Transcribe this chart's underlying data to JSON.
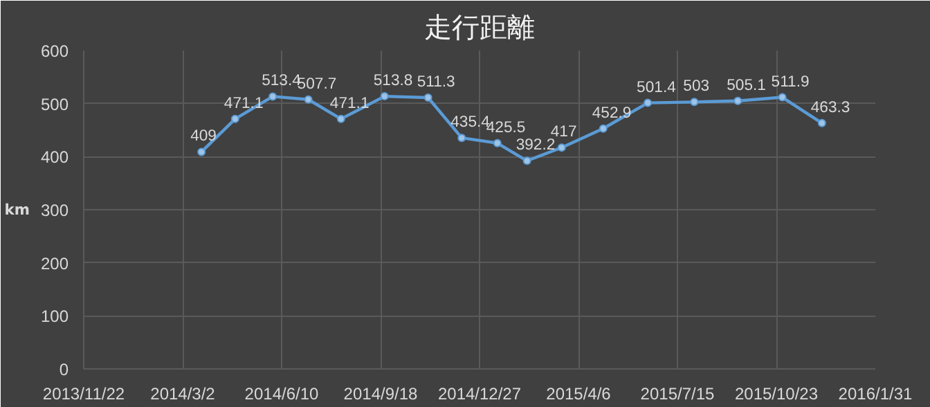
{
  "chart_data": {
    "type": "line",
    "title": "走行距離",
    "ylabel": "km",
    "x": [
      "2014-03-21",
      "2014-04-24",
      "2014-06-01",
      "2014-07-07",
      "2014-08-09",
      "2014-09-22",
      "2014-11-05",
      "2014-12-09",
      "2015-01-14",
      "2015-02-13",
      "2015-03-20",
      "2015-05-01",
      "2015-06-15",
      "2015-08-01",
      "2015-09-14",
      "2015-10-29",
      "2015-12-08"
    ],
    "series": [
      {
        "color": "#5b9bd5",
        "values": [
          409,
          471.1,
          513.4,
          507.7,
          471.1,
          513.8,
          511.3,
          435.4,
          425.5,
          392.2,
          417,
          452.9,
          501.4,
          503,
          505.1,
          511.9,
          463.3
        ]
      }
    ],
    "xlim": [
      "2013-11-22",
      "2016-01-31"
    ],
    "xticks": [
      {
        "value": "2013-11-22",
        "label": "2013/11/22"
      },
      {
        "value": "2014-03-02",
        "label": "2014/3/2"
      },
      {
        "value": "2014-06-10",
        "label": "2014/6/10"
      },
      {
        "value": "2014-09-18",
        "label": "2014/9/18"
      },
      {
        "value": "2014-12-27",
        "label": "2014/12/27"
      },
      {
        "value": "2015-04-06",
        "label": "2015/4/6"
      },
      {
        "value": "2015-07-15",
        "label": "2015/7/15"
      },
      {
        "value": "2015-10-23",
        "label": "2015/10/23"
      },
      {
        "value": "2016-01-31",
        "label": "2016/1/31"
      }
    ],
    "ylim": [
      0,
      600
    ],
    "yticks": [
      0,
      100,
      200,
      300,
      400,
      500,
      600
    ],
    "grid": true,
    "marker": "circle",
    "line_style": "solid",
    "data_labels": true
  }
}
